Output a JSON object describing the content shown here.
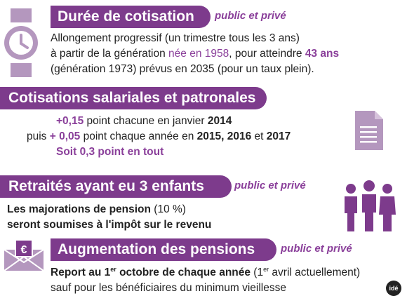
{
  "s1": {
    "title": "Durée de cotisation",
    "scope": "public et privé",
    "l1": "Allongement progressif (un trimestre tous les 3 ans)",
    "l2a": "à partir de la génération ",
    "l2b": "née en 1958",
    "l2c": ", pour atteindre ",
    "l2d": "43 ans",
    "l3": "(génération 1973) prévus en 2035 (pour un taux plein)."
  },
  "s2": {
    "title": "Cotisations salariales et patronales",
    "l1a": "+0,15",
    "l1b": " point chacune en janvier ",
    "l1c": "2014",
    "l2a": "puis ",
    "l2b": "+ 0,05",
    "l2c": " point chaque année en ",
    "l2d": "2015, 2016",
    "l2e": " et ",
    "l2f": "2017",
    "l3": "Soit 0,3 point en tout"
  },
  "s3": {
    "title": "Retraités ayant eu 3 enfants",
    "scope": "public et privé",
    "l1a": "Les majorations de pension",
    "l1b": " (10 %)",
    "l2": "seront soumises à l'impôt sur le revenu"
  },
  "s4": {
    "title": "Augmentation des pensions",
    "scope": "public et privé",
    "l1a": "Report au 1",
    "l1sup": "er",
    "l1b": " octobre de chaque année",
    "l1c": " (1",
    "l1sup2": "er",
    "l1d": " avril actuellement)",
    "l2": "sauf pour les bénéficiaires du minimum vieillesse",
    "envelope_symbol": "€"
  },
  "logo": "idé",
  "colors": {
    "accent": "#7d3b8c",
    "highlight": "#8a3f9a",
    "icon": "#b497be"
  },
  "icons": [
    "watch-icon",
    "document-icon",
    "family-icon",
    "envelope-euro-icon"
  ]
}
